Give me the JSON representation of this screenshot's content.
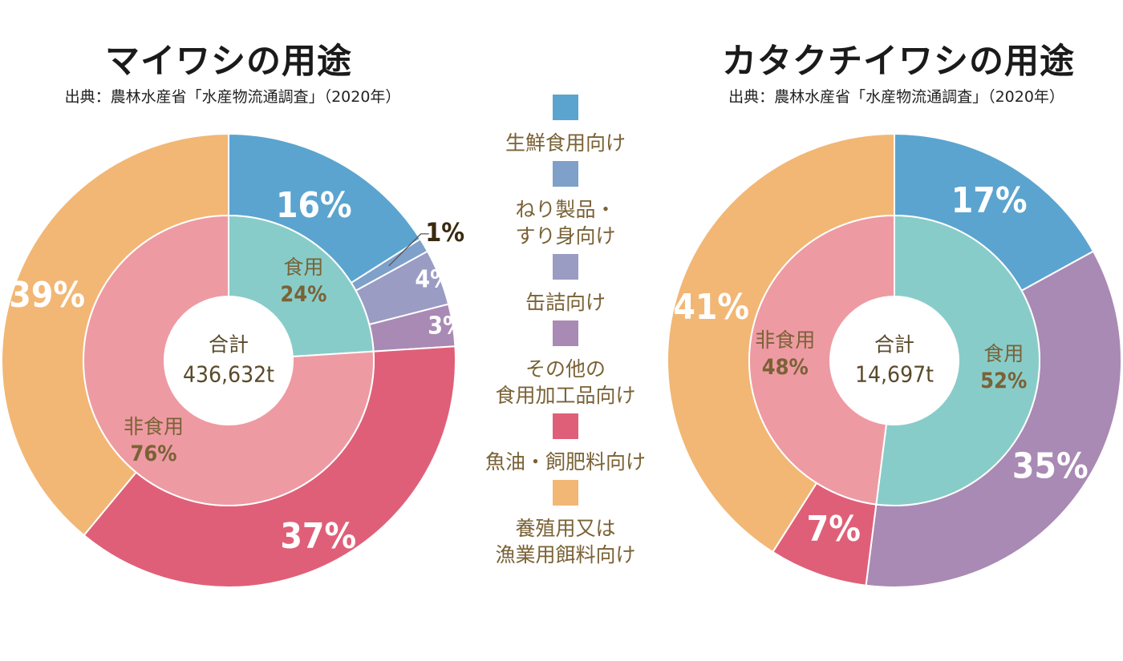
{
  "colors": {
    "fresh": "#5ba4cf",
    "nerimono": "#7fa0c9",
    "canned": "#9a9cc4",
    "other_processed": "#a98ab4",
    "fish_oil": "#e05f78",
    "aquaculture": "#f2b774",
    "food_inner": "#88ccc9",
    "nonfood_inner": "#ee9aa3",
    "label_brown": "#7a6236"
  },
  "legend": {
    "items": [
      {
        "key": "fresh",
        "label": "生鮮食用向け"
      },
      {
        "key": "nerimono",
        "label": "ねり製品・\nすり身向け"
      },
      {
        "key": "canned",
        "label": "缶詰向け"
      },
      {
        "key": "other_processed",
        "label": "その他の\n食用加工品向け"
      },
      {
        "key": "fish_oil",
        "label": "魚油・飼肥料向け"
      },
      {
        "key": "aquaculture",
        "label": "養殖用又は\n漁業用餌料向け"
      }
    ]
  },
  "chart_data": [
    {
      "type": "pie",
      "title": "マイワシの用途",
      "source": "出典：農林水産省「水産物流通調査」（2020年）",
      "center_label": {
        "line1": "合計",
        "line2": "436,632t"
      },
      "inner": [
        {
          "key": "food_inner",
          "name": "食用",
          "value": 24,
          "label": "24%"
        },
        {
          "key": "nonfood_inner",
          "name": "非食用",
          "value": 76,
          "label": "76%"
        }
      ],
      "outer": [
        {
          "key": "fresh",
          "value": 16,
          "label": "16%"
        },
        {
          "key": "nerimono",
          "value": 1,
          "label": "1%"
        },
        {
          "key": "canned",
          "value": 4,
          "label": "4%"
        },
        {
          "key": "other_processed",
          "value": 3,
          "label": "3%"
        },
        {
          "key": "fish_oil",
          "value": 37,
          "label": "37%"
        },
        {
          "key": "aquaculture",
          "value": 39,
          "label": "39%"
        }
      ]
    },
    {
      "type": "pie",
      "title": "カタクチイワシの用途",
      "source": "出典：農林水産省「水産物流通調査」（2020年）",
      "center_label": {
        "line1": "合計",
        "line2": "14,697t"
      },
      "inner": [
        {
          "key": "food_inner",
          "name": "食用",
          "value": 52,
          "label": "52%"
        },
        {
          "key": "nonfood_inner",
          "name": "非食用",
          "value": 48,
          "label": "48%"
        }
      ],
      "outer": [
        {
          "key": "fresh",
          "value": 17,
          "label": "17%"
        },
        {
          "key": "other_processed",
          "value": 35,
          "label": "35%"
        },
        {
          "key": "fish_oil",
          "value": 7,
          "label": "7%"
        },
        {
          "key": "aquaculture",
          "value": 41,
          "label": "41%"
        }
      ]
    }
  ]
}
